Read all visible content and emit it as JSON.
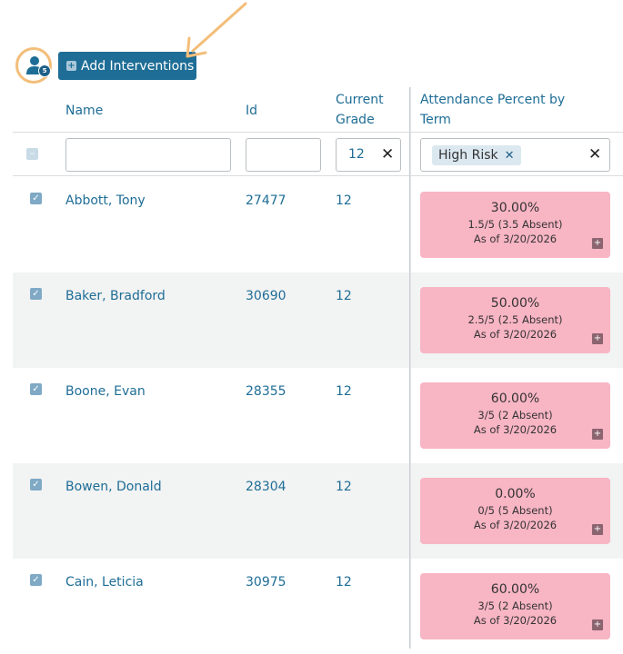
{
  "toolbar": {
    "selected_count": "5",
    "add_interventions_label": "Add Interventions",
    "accent_color": "#1e6d96",
    "highlight_color": "#f3be7a"
  },
  "columns": {
    "name": "Name",
    "id": "Id",
    "current_grade_line1": "Current",
    "current_grade_line2": "Grade",
    "attendance_line1": "Attendance Percent by",
    "attendance_line2": "Term"
  },
  "filters": {
    "name_value": "",
    "id_value": "",
    "grade_value": "12",
    "attendance_chip": "High Risk"
  },
  "rows": [
    {
      "name": "Abbott, Tony",
      "id": "27477",
      "grade": "12",
      "percent": "30.00%",
      "detail": "1.5/5 (3.5 Absent)",
      "as_of": "As of 3/20/2026"
    },
    {
      "name": "Baker, Bradford",
      "id": "30690",
      "grade": "12",
      "percent": "50.00%",
      "detail": "2.5/5 (2.5 Absent)",
      "as_of": "As of 3/20/2026"
    },
    {
      "name": "Boone, Evan",
      "id": "28355",
      "grade": "12",
      "percent": "60.00%",
      "detail": "3/5 (2 Absent)",
      "as_of": "As of 3/20/2026"
    },
    {
      "name": "Bowen, Donald",
      "id": "28304",
      "grade": "12",
      "percent": "0.00%",
      "detail": "0/5 (5 Absent)",
      "as_of": "As of 3/20/2026"
    },
    {
      "name": "Cain, Leticia",
      "id": "30975",
      "grade": "12",
      "percent": "60.00%",
      "detail": "3/5 (2 Absent)",
      "as_of": "As of 3/20/2026"
    }
  ],
  "risk_color": "#f8b5c4"
}
